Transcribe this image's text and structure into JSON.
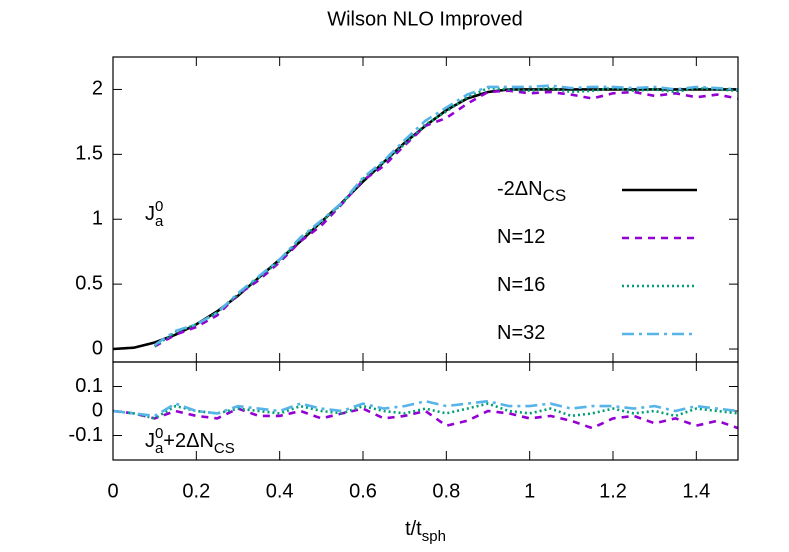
{
  "chart_data": [
    {
      "type": "line",
      "title": "Wilson NLO Improved",
      "x": [
        0,
        0.05,
        0.1,
        0.15,
        0.2,
        0.25,
        0.3,
        0.35,
        0.4,
        0.45,
        0.5,
        0.55,
        0.6,
        0.65,
        0.7,
        0.75,
        0.8,
        0.85,
        0.9,
        0.95,
        1,
        1.05,
        1.1,
        1.15,
        1.2,
        1.25,
        1.3,
        1.35,
        1.4,
        1.45,
        1.5
      ],
      "xlim": [
        0,
        1.5
      ],
      "xticks": [
        0,
        0.2,
        0.4,
        0.6,
        0.8,
        1,
        1.2,
        1.4
      ],
      "show_xtick_labels": false,
      "ylim": [
        -0.1,
        2.25
      ],
      "yticks": [
        0,
        0.5,
        1,
        1.5,
        2
      ],
      "legend": "right",
      "annotation": [
        {
          "text": "J"
        },
        {
          "sup": "0"
        },
        {
          "sub": "a"
        }
      ],
      "series": [
        {
          "name": "-2ΔN",
          "name_subscript": "CS",
          "color": "#000000",
          "dash": "solid",
          "values": [
            0,
            0.01,
            0.05,
            0.11,
            0.19,
            0.29,
            0.41,
            0.55,
            0.69,
            0.83,
            0.98,
            1.13,
            1.29,
            1.44,
            1.59,
            1.72,
            1.84,
            1.93,
            1.98,
            2.0,
            2,
            2,
            2,
            2,
            2,
            2,
            2,
            2,
            2,
            2,
            2
          ]
        },
        {
          "name": "N=12",
          "color": "#9400d3",
          "dash": "dashed",
          "values": [
            null,
            null,
            0.02,
            0.11,
            0.17,
            0.26,
            0.42,
            0.53,
            0.67,
            0.83,
            0.95,
            1.12,
            1.3,
            1.41,
            1.57,
            1.72,
            1.78,
            1.89,
            1.98,
            1.99,
            1.97,
            1.98,
            1.96,
            1.93,
            1.97,
            1.98,
            1.95,
            1.97,
            1.94,
            1.96,
            1.93
          ]
        },
        {
          "name": "N=16",
          "color": "#009e73",
          "dash": "dotted",
          "values": [
            null,
            null,
            0.02,
            0.13,
            0.19,
            0.28,
            0.42,
            0.55,
            0.68,
            0.85,
            0.98,
            1.12,
            1.31,
            1.44,
            1.58,
            1.73,
            1.83,
            1.94,
            2.01,
            2.0,
            1.99,
            2.01,
            1.98,
            1.99,
            2.01,
            1.99,
            2.0,
            1.98,
            2.01,
            2.0,
            1.99
          ]
        },
        {
          "name": "N=32",
          "color": "#56b4e9",
          "dash": "dashdot",
          "values": [
            null,
            null,
            0.03,
            0.14,
            0.19,
            0.28,
            0.43,
            0.56,
            0.69,
            0.86,
            0.99,
            1.13,
            1.32,
            1.45,
            1.61,
            1.76,
            1.86,
            1.96,
            2.02,
            2.02,
            2.02,
            2.03,
            2.01,
            2.02,
            2.02,
            2.01,
            2.02,
            2.0,
            2.02,
            2.01,
            2.0
          ]
        }
      ]
    },
    {
      "type": "line",
      "x_label": "t/t",
      "x_label_subscript": "sph",
      "x": [
        0,
        0.05,
        0.1,
        0.15,
        0.2,
        0.25,
        0.3,
        0.35,
        0.4,
        0.45,
        0.5,
        0.55,
        0.6,
        0.65,
        0.7,
        0.75,
        0.8,
        0.85,
        0.9,
        0.95,
        1,
        1.05,
        1.1,
        1.15,
        1.2,
        1.25,
        1.3,
        1.35,
        1.4,
        1.45,
        1.5
      ],
      "xlim": [
        0,
        1.5
      ],
      "xticks": [
        0,
        0.2,
        0.4,
        0.6,
        0.8,
        1,
        1.2,
        1.4
      ],
      "show_xtick_labels": true,
      "ylim": [
        -0.2,
        0.2
      ],
      "yticks": [
        -0.1,
        0,
        0.1
      ],
      "annotation": [
        {
          "text": "J"
        },
        {
          "sup": "0"
        },
        {
          "sub": "a"
        },
        {
          "text": "+2ΔN"
        },
        {
          "sub": "CS"
        }
      ],
      "series": [
        {
          "color": "#9400d3",
          "dash": "dashed",
          "values": [
            0,
            -0.01,
            -0.03,
            0.0,
            -0.02,
            -0.03,
            0.01,
            -0.02,
            -0.02,
            0.0,
            -0.03,
            -0.01,
            0.01,
            -0.03,
            -0.02,
            0.0,
            -0.06,
            -0.04,
            0.0,
            -0.01,
            -0.03,
            -0.02,
            -0.04,
            -0.07,
            -0.03,
            -0.02,
            -0.05,
            -0.03,
            -0.06,
            -0.04,
            -0.07
          ]
        },
        {
          "color": "#009e73",
          "dash": "dotted",
          "values": [
            0,
            -0.01,
            -0.03,
            0.02,
            0.0,
            -0.01,
            0.01,
            0.0,
            -0.01,
            0.02,
            0.0,
            -0.01,
            0.02,
            0.0,
            -0.01,
            0.01,
            -0.01,
            0.01,
            0.03,
            0.0,
            -0.01,
            0.01,
            -0.02,
            -0.01,
            0.01,
            -0.01,
            0.0,
            -0.02,
            0.01,
            0.0,
            -0.01
          ]
        },
        {
          "color": "#56b4e9",
          "dash": "dashdot",
          "values": [
            0,
            -0.01,
            -0.02,
            0.03,
            0.0,
            -0.01,
            0.02,
            0.01,
            0.0,
            0.03,
            0.01,
            0.0,
            0.03,
            0.01,
            0.02,
            0.04,
            0.02,
            0.03,
            0.04,
            0.02,
            0.02,
            0.03,
            0.01,
            0.02,
            0.02,
            0.01,
            0.02,
            0.0,
            0.02,
            0.01,
            0.0
          ]
        }
      ]
    }
  ]
}
